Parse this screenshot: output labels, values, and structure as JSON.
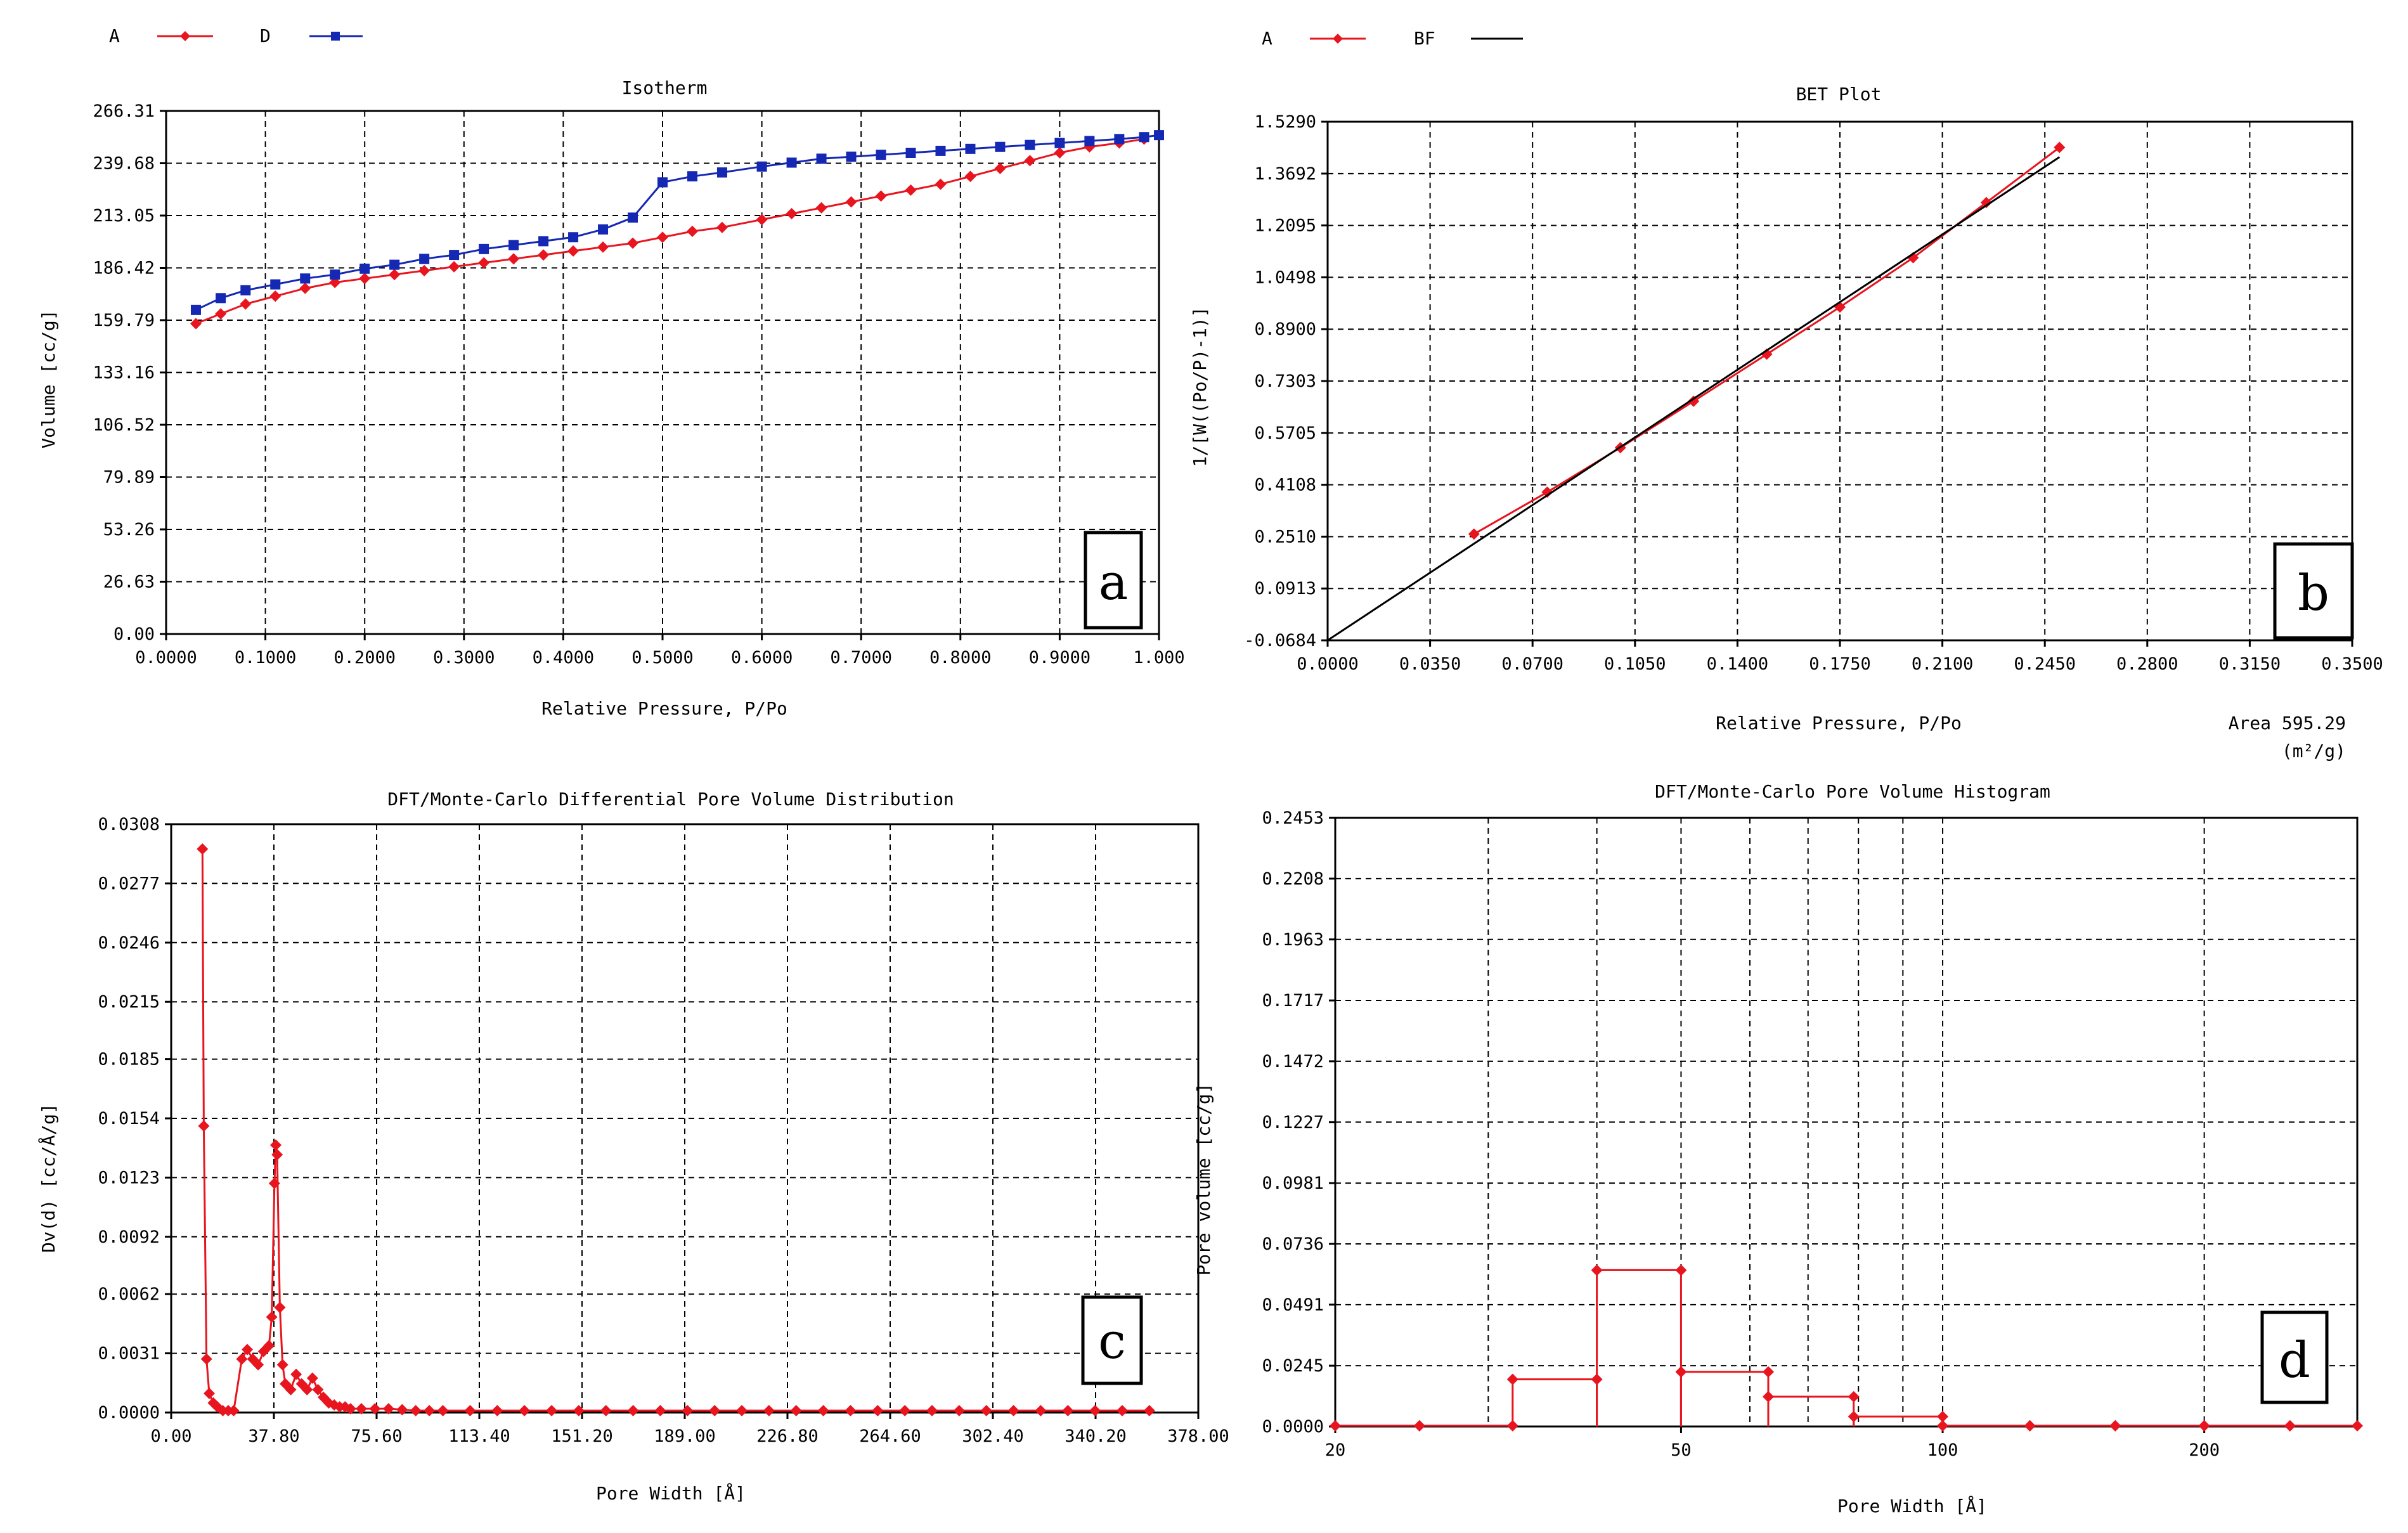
{
  "chart_data": [
    {
      "id": "a",
      "type": "line",
      "title": "Isotherm",
      "xlabel": "Relative Pressure, P/Po",
      "ylabel": "Volume [cc/g]",
      "panel_label": "a",
      "xlim": [
        0,
        1
      ],
      "ylim": [
        0,
        266.31
      ],
      "xticks": [
        0,
        0.1,
        0.2,
        0.3,
        0.4,
        0.5,
        0.6,
        0.7,
        0.8,
        0.9,
        1.0
      ],
      "xtick_labels": [
        "0.0000",
        "0.1000",
        "0.2000",
        "0.3000",
        "0.4000",
        "0.5000",
        "0.6000",
        "0.7000",
        "0.8000",
        "0.9000",
        "1.000"
      ],
      "yticks": [
        0,
        26.63,
        53.26,
        79.89,
        106.52,
        133.16,
        159.79,
        186.42,
        213.05,
        239.68,
        266.31
      ],
      "ytick_labels": [
        "0.00",
        "26.63",
        "53.26",
        "79.89",
        "106.52",
        "133.16",
        "159.79",
        "186.42",
        "213.05",
        "239.68",
        "266.31"
      ],
      "legend": [
        {
          "label": "A",
          "color": "#e8141e",
          "marker": "diamond"
        },
        {
          "label": "D",
          "color": "#1428b4",
          "marker": "square"
        }
      ],
      "series": [
        {
          "name": "A",
          "color": "#e8141e",
          "marker": "diamond",
          "x": [
            0.03,
            0.055,
            0.08,
            0.11,
            0.14,
            0.17,
            0.2,
            0.23,
            0.26,
            0.29,
            0.32,
            0.35,
            0.38,
            0.41,
            0.44,
            0.47,
            0.5,
            0.53,
            0.56,
            0.6,
            0.63,
            0.66,
            0.69,
            0.72,
            0.75,
            0.78,
            0.81,
            0.84,
            0.87,
            0.9,
            0.93,
            0.96,
            0.985
          ],
          "y": [
            158,
            163,
            168,
            172,
            176,
            179,
            181,
            183,
            185,
            187,
            189,
            191,
            193,
            195,
            197,
            199,
            202,
            205,
            207,
            211,
            214,
            217,
            220,
            223,
            226,
            229,
            233,
            237,
            241,
            245,
            248,
            250,
            252
          ]
        },
        {
          "name": "D",
          "color": "#1428b4",
          "marker": "square",
          "x": [
            0.03,
            0.055,
            0.08,
            0.11,
            0.14,
            0.17,
            0.2,
            0.23,
            0.26,
            0.29,
            0.32,
            0.35,
            0.38,
            0.41,
            0.44,
            0.47,
            0.5,
            0.53,
            0.56,
            0.6,
            0.63,
            0.66,
            0.69,
            0.72,
            0.75,
            0.78,
            0.81,
            0.84,
            0.87,
            0.9,
            0.93,
            0.96,
            0.985,
            1.0
          ],
          "y": [
            165,
            171,
            175,
            178,
            181,
            183,
            186,
            188,
            191,
            193,
            196,
            198,
            200,
            202,
            206,
            212,
            230,
            233,
            235,
            238,
            240,
            242,
            243,
            244,
            245,
            246,
            247,
            248,
            249,
            250,
            251,
            252,
            253,
            254
          ]
        }
      ]
    },
    {
      "id": "b",
      "type": "line",
      "title": "BET Plot",
      "xlabel": "Relative Pressure, P/Po",
      "ylabel": "1/[W((Po/P)-1)]",
      "panel_label": "b",
      "area_label": "Area 595.29",
      "area_unit": "(m²/g)",
      "xlim": [
        0,
        0.35
      ],
      "ylim": [
        -0.0684,
        1.529
      ],
      "xticks": [
        0,
        0.035,
        0.07,
        0.105,
        0.14,
        0.175,
        0.21,
        0.245,
        0.28,
        0.315,
        0.35
      ],
      "xtick_labels": [
        "0.0000",
        "0.0350",
        "0.0700",
        "0.1050",
        "0.1400",
        "0.1750",
        "0.2100",
        "0.2450",
        "0.2800",
        "0.3150",
        "0.3500"
      ],
      "yticks": [
        -0.0684,
        0.0913,
        0.251,
        0.4108,
        0.5705,
        0.7303,
        0.89,
        1.0498,
        1.2095,
        1.3692,
        1.529
      ],
      "ytick_labels": [
        "-0.0684",
        "0.0913",
        "0.2510",
        "0.4108",
        "0.5705",
        "0.7303",
        "0.8900",
        "1.0498",
        "1.2095",
        "1.3692",
        "1.5290"
      ],
      "legend": [
        {
          "label": "A",
          "color": "#e8141e",
          "marker": "diamond"
        },
        {
          "label": "BF",
          "color": "#000000",
          "marker": "none"
        }
      ],
      "series": [
        {
          "name": "A",
          "color": "#e8141e",
          "marker": "diamond",
          "x": [
            0.05,
            0.075,
            0.1,
            0.125,
            0.15,
            0.175,
            0.2,
            0.225,
            0.25
          ],
          "y": [
            0.259,
            0.388,
            0.525,
            0.668,
            0.813,
            0.958,
            1.11,
            1.28,
            1.45
          ]
        },
        {
          "name": "BF",
          "color": "#000000",
          "marker": "none",
          "x": [
            0.0,
            0.25
          ],
          "y": [
            -0.0684,
            1.42
          ]
        }
      ]
    },
    {
      "id": "c",
      "type": "line",
      "title": "DFT/Monte-Carlo Differential Pore Volume Distribution",
      "xlabel": "Pore Width [Å]",
      "ylabel": "Dv(d) [cc/Å/g]",
      "panel_label": "c",
      "xlim": [
        0,
        378
      ],
      "ylim": [
        0,
        0.0308
      ],
      "xticks": [
        0,
        37.8,
        75.6,
        113.4,
        151.2,
        189.0,
        226.8,
        264.6,
        302.4,
        340.2,
        378.0
      ],
      "xtick_labels": [
        "0.00",
        "37.80",
        "75.60",
        "113.40",
        "151.20",
        "189.00",
        "226.80",
        "264.60",
        "302.40",
        "340.20",
        "378.00"
      ],
      "yticks": [
        0,
        0.0031,
        0.0062,
        0.0092,
        0.0123,
        0.0154,
        0.0185,
        0.0215,
        0.0246,
        0.0277,
        0.0308
      ],
      "ytick_labels": [
        "0.0000",
        "0.0031",
        "0.0062",
        "0.0092",
        "0.0123",
        "0.0154",
        "0.0185",
        "0.0215",
        "0.0246",
        "0.0277",
        "0.0308"
      ],
      "series": [
        {
          "name": "A",
          "color": "#e8141e",
          "marker": "diamond",
          "x": [
            11.5,
            12,
            13,
            14,
            15.5,
            17,
            19,
            21,
            23,
            26,
            28,
            30,
            32,
            34,
            36,
            37,
            38,
            38.5,
            39,
            40,
            41,
            42,
            44,
            46,
            48,
            50,
            52,
            54,
            56,
            58,
            60,
            62,
            64,
            66,
            70,
            75,
            80,
            85,
            90,
            95,
            100,
            110,
            120,
            130,
            140,
            150,
            160,
            170,
            180,
            190,
            200,
            210,
            220,
            230,
            240,
            250,
            260,
            270,
            280,
            290,
            300,
            310,
            320,
            330,
            340,
            350,
            360
          ],
          "y": [
            0.0295,
            0.015,
            0.0028,
            0.001,
            0.0005,
            0.0003,
            0.0001,
            0.0001,
            0.0001,
            0.0028,
            0.0033,
            0.0028,
            0.0025,
            0.0032,
            0.0035,
            0.005,
            0.012,
            0.014,
            0.0135,
            0.0055,
            0.0025,
            0.0015,
            0.0012,
            0.002,
            0.0015,
            0.0012,
            0.0018,
            0.0012,
            0.0008,
            0.0005,
            0.0004,
            0.0003,
            0.0003,
            0.0002,
            0.0002,
            0.0002,
            0.0002,
            0.00015,
            0.0001,
            0.0001,
            0.0001,
            0.0001,
            0.0001,
            0.0001,
            0.0001,
            0.0001,
            0.0001,
            0.0001,
            0.0001,
            0.0001,
            0.0001,
            0.0001,
            0.0001,
            0.0001,
            0.0001,
            0.0001,
            0.0001,
            0.0001,
            0.0001,
            0.0001,
            0.0001,
            0.0001,
            0.0001,
            0.0001,
            0.0001,
            0.0001,
            0.0001
          ]
        }
      ]
    },
    {
      "id": "d",
      "type": "bar",
      "title": "DFT/Monte-Carlo Pore Volume Histogram",
      "xlabel": "Pore Width [Å]",
      "ylabel": "Pore volume [cc/g]",
      "panel_label": "d",
      "xscale": "log",
      "xlim": [
        20,
        300
      ],
      "ylim": [
        0,
        0.2453
      ],
      "xticks": [
        20,
        50,
        100,
        200
      ],
      "xtick_labels": [
        "20",
        "50",
        "100",
        "200"
      ],
      "xgrid": [
        20,
        30,
        40,
        50,
        60,
        70,
        80,
        90,
        100,
        200,
        300
      ],
      "yticks": [
        0,
        0.0245,
        0.0491,
        0.0736,
        0.0981,
        0.1227,
        0.1472,
        0.1717,
        0.1963,
        0.2208,
        0.2453
      ],
      "ytick_labels": [
        "0.0000",
        "0.0245",
        "0.0491",
        "0.0736",
        "0.0981",
        "0.1227",
        "0.1472",
        "0.1717",
        "0.1963",
        "0.2208",
        "0.2453"
      ],
      "bins": [
        {
          "from": 20,
          "to": 25,
          "value": 0.0003
        },
        {
          "from": 25,
          "to": 32,
          "value": 0.0003
        },
        {
          "from": 32,
          "to": 40,
          "value": 0.019
        },
        {
          "from": 40,
          "to": 50,
          "value": 0.063
        },
        {
          "from": 50,
          "to": 63,
          "value": 0.022
        },
        {
          "from": 63,
          "to": 79,
          "value": 0.012
        },
        {
          "from": 79,
          "to": 100,
          "value": 0.004
        },
        {
          "from": 100,
          "to": 126,
          "value": 0.0003
        },
        {
          "from": 126,
          "to": 158,
          "value": 0.0003
        },
        {
          "from": 158,
          "to": 200,
          "value": 0.0003
        },
        {
          "from": 200,
          "to": 251,
          "value": 0.0003
        },
        {
          "from": 251,
          "to": 300,
          "value": 0.0003
        }
      ],
      "color": "#e8141e"
    }
  ]
}
